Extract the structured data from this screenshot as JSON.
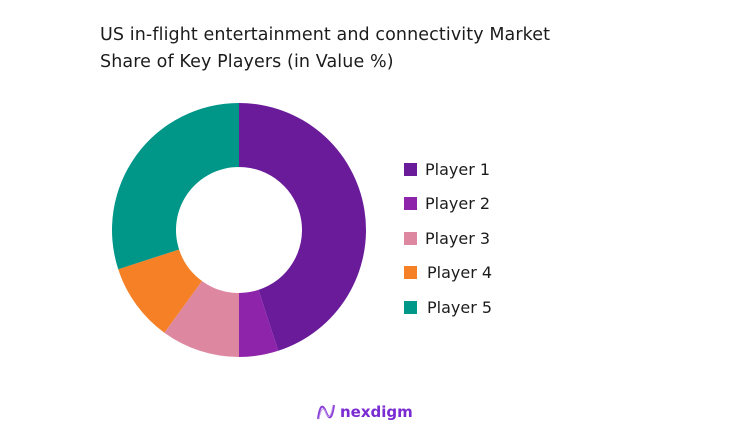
{
  "title_line1": "US in-flight entertainment and connectivity Market",
  "title_line2": "Share of Key Players (in Value %)",
  "chart_data": {
    "type": "pie",
    "subtype": "donut",
    "title": "US in-flight entertainment and connectivity Market Share of Key Players (in Value %)",
    "categories": [
      "Player 1",
      "Player 2",
      "Player 3",
      "Player 4",
      "Player 5"
    ],
    "values": [
      45,
      5,
      10,
      10,
      30
    ],
    "colors": [
      "#6a1b9a",
      "#8e24aa",
      "#de87a1",
      "#f58025",
      "#009688"
    ],
    "legend_position": "right",
    "start_angle": "12 o'clock, clockwise"
  },
  "legend": [
    {
      "label": "Player 1",
      "color": "#6a1b9a"
    },
    {
      "label": "Player 2",
      "color": "#8e24aa"
    },
    {
      "label": "Player 3",
      "color": "#de87a1"
    },
    {
      "label": "Player 4",
      "color": "#f58025"
    },
    {
      "label": "Player 5",
      "color": "#009688"
    }
  ],
  "logo": {
    "text": "nexdigm",
    "icon": "nexdigm-wave-logo-icon"
  }
}
